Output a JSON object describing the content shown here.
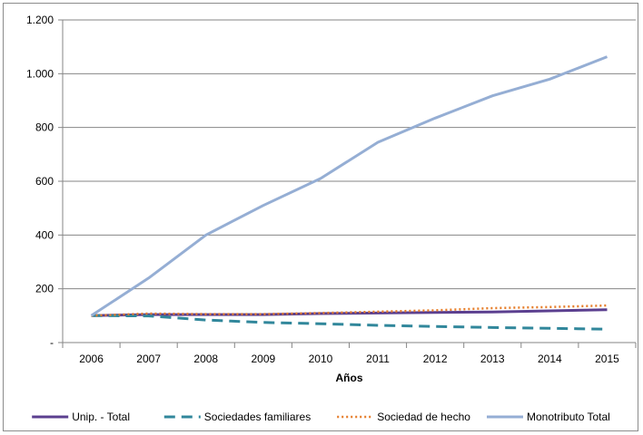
{
  "chart_data": {
    "type": "line",
    "title": "",
    "xlabel": "Años",
    "ylabel": "",
    "x": [
      "2006",
      "2007",
      "2008",
      "2009",
      "2010",
      "2011",
      "2012",
      "2013",
      "2014",
      "2015"
    ],
    "ylim": [
      0,
      1200
    ],
    "yticks": [
      {
        "value": 0,
        "label": "-"
      },
      {
        "value": 200,
        "label": "200"
      },
      {
        "value": 400,
        "label": "400"
      },
      {
        "value": 600,
        "label": "600"
      },
      {
        "value": 800,
        "label": "800"
      },
      {
        "value": 1000,
        "label": "1.000"
      },
      {
        "value": 1200,
        "label": "1.200"
      }
    ],
    "grid": "horizontal",
    "legend_position": "bottom",
    "series": [
      {
        "name": "Unip. -  Total",
        "color": "#5b3f8f",
        "style": "solid",
        "values": [
          100,
          104,
          104,
          104,
          108,
          110,
          112,
          114,
          118,
          122
        ]
      },
      {
        "name": "Sociedades familiares",
        "color": "#31879b",
        "style": "dashed",
        "values": [
          100,
          99,
          84,
          75,
          70,
          64,
          60,
          56,
          53,
          50
        ]
      },
      {
        "name": "Sociedad de hecho",
        "color": "#e57c28",
        "style": "dotted",
        "values": [
          100,
          108,
          106,
          106,
          110,
          115,
          120,
          128,
          132,
          138
        ]
      },
      {
        "name": "Monotributo Total",
        "color": "#95aed4",
        "style": "solid",
        "values": [
          100,
          240,
          400,
          510,
          610,
          745,
          835,
          918,
          980,
          1063
        ]
      }
    ]
  }
}
